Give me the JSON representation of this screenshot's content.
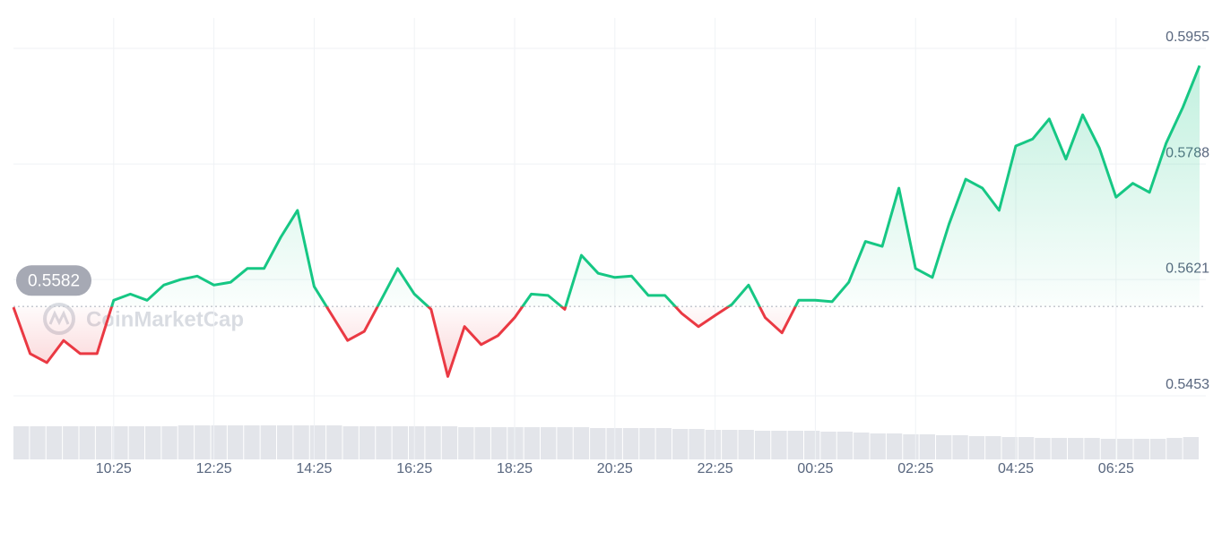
{
  "chart_data": {
    "type": "line",
    "watermark": "CoinMarketCap",
    "values": [
      0.5581,
      0.5514,
      0.5501,
      0.5533,
      0.5514,
      0.5514,
      0.5591,
      0.56,
      0.5591,
      0.5613,
      0.5621,
      0.5626,
      0.5613,
      0.5617,
      0.5637,
      0.5637,
      0.5682,
      0.5721,
      0.5611,
      0.5572,
      0.5533,
      0.5546,
      0.5591,
      0.5637,
      0.56,
      0.5578,
      0.5481,
      0.5553,
      0.5527,
      0.554,
      0.5566,
      0.56,
      0.5598,
      0.5578,
      0.5656,
      0.563,
      0.5624,
      0.5626,
      0.5598,
      0.5598,
      0.5572,
      0.5553,
      0.5569,
      0.5585,
      0.5613,
      0.5566,
      0.5544,
      0.5591,
      0.5591,
      0.5589,
      0.5617,
      0.5676,
      0.5669,
      0.5753,
      0.5637,
      0.5624,
      0.5701,
      0.5766,
      0.5753,
      0.5721,
      0.5814,
      0.5824,
      0.5853,
      0.5795,
      0.5859,
      0.5811,
      0.574,
      0.576,
      0.5747,
      0.5818,
      0.587,
      0.593
    ],
    "volumes": [
      37,
      37,
      37,
      37,
      37,
      37,
      37,
      37,
      37,
      37,
      38,
      38,
      38,
      38,
      38,
      38,
      38,
      38,
      38,
      38,
      37,
      37,
      37,
      37,
      37,
      37,
      37,
      36,
      36,
      36,
      36,
      36,
      36,
      36,
      36,
      35,
      35,
      35,
      35,
      35,
      34,
      34,
      33,
      33,
      33,
      32,
      32,
      32,
      32,
      31,
      31,
      30,
      29,
      29,
      28,
      28,
      27,
      27,
      26,
      26,
      25,
      25,
      24,
      24,
      24,
      24,
      23,
      23,
      23,
      23,
      24,
      25
    ],
    "baseline": 0.5582,
    "up_color": "#16c784",
    "down_color": "#ea3943",
    "xlim": [
      0,
      71
    ],
    "xticks": [
      {
        "value": 6,
        "label": "10:25"
      },
      {
        "value": 12,
        "label": "12:25"
      },
      {
        "value": 18,
        "label": "14:25"
      },
      {
        "value": 24,
        "label": "16:25"
      },
      {
        "value": 30,
        "label": "18:25"
      },
      {
        "value": 36,
        "label": "20:25"
      },
      {
        "value": 42,
        "label": "22:25"
      },
      {
        "value": 48,
        "label": "00:25"
      },
      {
        "value": 54,
        "label": "02:25"
      },
      {
        "value": 60,
        "label": "04:25"
      },
      {
        "value": 66,
        "label": "06:25"
      }
    ],
    "ylim": [
      0.5453,
      0.5955
    ],
    "yticks": [
      0.5453,
      0.5621,
      0.5788,
      0.5955
    ],
    "grid": true
  }
}
